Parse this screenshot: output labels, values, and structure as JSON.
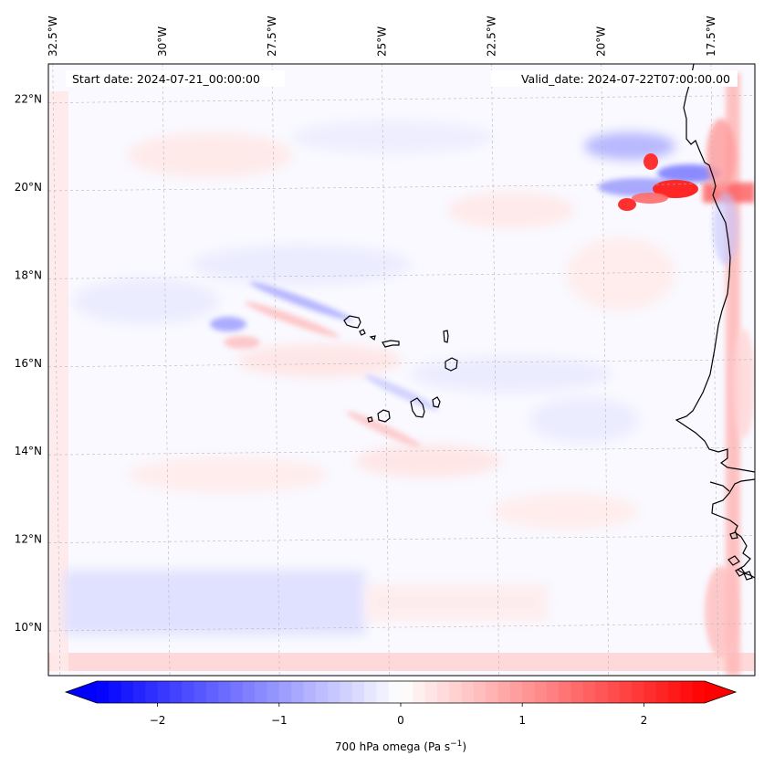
{
  "header": {
    "start_date": "Start date: 2024-07-21_00:00:00",
    "valid_date": "Valid_date: 2024-07-22T07:00:00.00"
  },
  "map": {
    "lon_labels": [
      "32.5°W",
      "30°W",
      "27.5°W",
      "25°W",
      "22.5°W",
      "20°W",
      "17.5°W"
    ],
    "lon_values": [
      -32.5,
      -30,
      -27.5,
      -25,
      -22.5,
      -20,
      -17.5
    ],
    "lat_labels": [
      "22°N",
      "20°N",
      "18°N",
      "16°N",
      "14°N",
      "12°N",
      "10°N"
    ],
    "lat_values": [
      22,
      20,
      18,
      16,
      14,
      12,
      10
    ],
    "lon_range": [
      -32.6,
      -16.5
    ],
    "lat_range": [
      8.9,
      22.8
    ],
    "gridlines": true,
    "field": "700 hPa omega"
  },
  "colorbar": {
    "label": "700 hPa omega (Pa s",
    "label_sup": "−1",
    "label_end": ")",
    "ticks": [
      "−2",
      "−1",
      "0",
      "1",
      "2"
    ],
    "tick_values": [
      -2,
      -1,
      0,
      1,
      2
    ],
    "range": [
      -2.5,
      2.5
    ],
    "colormap": "bwr",
    "extend": "both",
    "colors": {
      "min": "#0000ff",
      "mid": "#ffffff",
      "max": "#ff0000"
    }
  }
}
